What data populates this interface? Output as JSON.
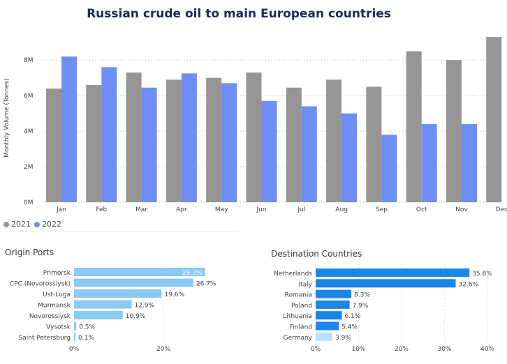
{
  "title": "Russian crude oil to main European countries",
  "colors": {
    "y2021": "#959595",
    "y2022": "#6f8ef5",
    "bar_blue": "#1a86e8",
    "bar_light": "#8cc9f3",
    "bar_pale": "#bfe0f8"
  },
  "legend": [
    {
      "label": "2021",
      "color": "#959595"
    },
    {
      "label": "2022",
      "color": "#6f8ef5"
    }
  ],
  "panels": {
    "origin_title": "Origin Ports",
    "destination_title": "Destination Countries"
  },
  "chart_data": [
    {
      "type": "bar",
      "title": "Russian crude oil to main European countries",
      "ylabel": "Monthly Volume (Tonnes)",
      "xlabel": "",
      "categories": [
        "Jan",
        "Feb",
        "Mar",
        "Apr",
        "May",
        "Jun",
        "Jul",
        "Aug",
        "Sep",
        "Oct",
        "Nov",
        "Dec"
      ],
      "series": [
        {
          "name": "2021",
          "values": [
            6.4,
            6.6,
            7.3,
            6.9,
            7.0,
            7.3,
            6.45,
            6.9,
            6.5,
            8.5,
            8.0,
            9.3
          ]
        },
        {
          "name": "2022",
          "values": [
            8.2,
            7.6,
            6.45,
            7.25,
            6.7,
            5.7,
            5.4,
            5.0,
            3.8,
            4.4,
            4.4,
            null
          ]
        }
      ],
      "yticks": [
        "0M",
        "2M",
        "4M",
        "6M",
        "8M"
      ],
      "ylim": [
        0,
        9.5
      ],
      "unit": "M",
      "grid": true,
      "legend": "bottom-left"
    },
    {
      "type": "bar",
      "orientation": "horizontal",
      "title": "Origin Ports",
      "categories": [
        "Primorsk",
        "CPC (Novorossiysk)",
        "Ust-Luga",
        "Murmansk",
        "Novorossiysk",
        "Vysotsk",
        "Saint Petersburg"
      ],
      "values": [
        29.3,
        26.7,
        19.6,
        12.9,
        10.9,
        0.5,
        0.1
      ],
      "labels": [
        "29.3%",
        "26.7%",
        "19.6%",
        "12.9%",
        "10.9%",
        "0.5%",
        "0.1%"
      ],
      "xticks": [
        "0%",
        "20%"
      ],
      "xlim": [
        0,
        29.3
      ]
    },
    {
      "type": "bar",
      "orientation": "horizontal",
      "title": "Destination Countries",
      "categories": [
        "Netherlands",
        "Italy",
        "Romania",
        "Poland",
        "Lithuania",
        "Finland",
        "Germany"
      ],
      "values": [
        35.8,
        32.6,
        8.3,
        7.9,
        6.1,
        5.4,
        3.9
      ],
      "labels": [
        "35.8%",
        "32.6%",
        "8.3%",
        "7.9%",
        "6.1%",
        "5.4%",
        "3.9%"
      ],
      "xticks": [
        "0%",
        "10%",
        "20%",
        "30%",
        "40%"
      ],
      "xlim": [
        0,
        40
      ]
    }
  ]
}
